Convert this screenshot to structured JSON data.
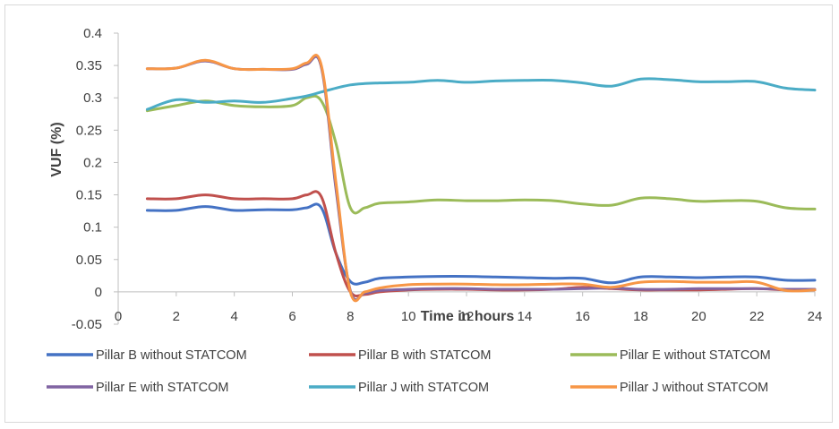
{
  "chart_data": {
    "type": "line",
    "title": "",
    "xlabel": "Time in hours",
    "ylabel": "VUF (%)",
    "xlim": [
      0,
      24
    ],
    "ylim": [
      -0.05,
      0.4
    ],
    "x_ticks": [
      "0",
      "2",
      "4",
      "6",
      "8",
      "10",
      "12",
      "14",
      "16",
      "18",
      "20",
      "22",
      "24"
    ],
    "y_ticks": [
      "-0.05",
      "0",
      "0.05",
      "0.1",
      "0.15",
      "0.2",
      "0.25",
      "0.3",
      "0.35",
      "0.4"
    ],
    "grid": false,
    "legend_position": "bottom",
    "x": [
      1,
      2,
      3,
      4,
      5,
      6,
      6.5,
      7,
      7.5,
      8,
      8.5,
      9,
      10,
      11,
      12,
      13,
      14,
      15,
      16,
      17,
      18,
      19,
      20,
      21,
      22,
      23,
      24
    ],
    "series": [
      {
        "name": "Pillar B without STATCOM",
        "color": "#4472c4",
        "values": [
          0.126,
          0.126,
          0.132,
          0.126,
          0.127,
          0.127,
          0.13,
          0.13,
          0.06,
          0.016,
          0.015,
          0.021,
          0.023,
          0.024,
          0.024,
          0.023,
          0.022,
          0.021,
          0.021,
          0.014,
          0.023,
          0.023,
          0.022,
          0.023,
          0.023,
          0.018,
          0.018
        ]
      },
      {
        "name": "Pillar B with STATCOM",
        "color": "#c0504d",
        "values": [
          0.144,
          0.144,
          0.15,
          0.144,
          0.144,
          0.144,
          0.15,
          0.147,
          0.06,
          0.0,
          -0.004,
          0.0,
          0.003,
          0.004,
          0.004,
          0.003,
          0.003,
          0.004,
          0.007,
          0.005,
          0.003,
          0.003,
          0.003,
          0.004,
          0.005,
          0.003,
          0.003
        ]
      },
      {
        "name": "Pillar E without STATCOM",
        "color": "#9bbb59",
        "values": [
          0.28,
          0.288,
          0.295,
          0.288,
          0.286,
          0.288,
          0.3,
          0.295,
          0.23,
          0.13,
          0.13,
          0.137,
          0.139,
          0.142,
          0.141,
          0.141,
          0.142,
          0.141,
          0.136,
          0.134,
          0.145,
          0.144,
          0.14,
          0.141,
          0.14,
          0.13,
          0.128
        ]
      },
      {
        "name": "Pillar E with STATCOM",
        "color": "#8064a2",
        "values": [
          0.345,
          0.346,
          0.357,
          0.345,
          0.344,
          0.344,
          0.352,
          0.347,
          0.16,
          0.002,
          -0.002,
          0.002,
          0.004,
          0.005,
          0.005,
          0.004,
          0.004,
          0.004,
          0.005,
          0.006,
          0.004,
          0.004,
          0.005,
          0.005,
          0.005,
          0.004,
          0.004
        ]
      },
      {
        "name": "Pillar J with STATCOM",
        "color": "#4bacc6",
        "values": [
          0.282,
          0.297,
          0.293,
          0.295,
          0.293,
          0.299,
          0.303,
          0.309,
          0.315,
          0.32,
          0.322,
          0.323,
          0.324,
          0.327,
          0.324,
          0.326,
          0.327,
          0.327,
          0.323,
          0.318,
          0.329,
          0.328,
          0.325,
          0.325,
          0.325,
          0.315,
          0.312
        ]
      },
      {
        "name": "Pillar J without STATCOM",
        "color": "#f79646",
        "values": [
          0.345,
          0.346,
          0.358,
          0.345,
          0.344,
          0.345,
          0.354,
          0.35,
          0.17,
          0.0,
          0.0,
          0.006,
          0.011,
          0.012,
          0.012,
          0.011,
          0.011,
          0.012,
          0.012,
          0.007,
          0.015,
          0.016,
          0.015,
          0.015,
          0.015,
          0.002,
          0.003
        ]
      }
    ]
  }
}
